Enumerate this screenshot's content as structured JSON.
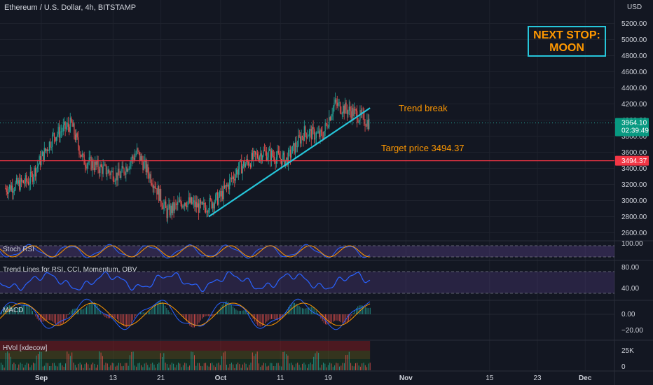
{
  "header": {
    "title": "Ethereum / U.S. Dollar, 4h, BITSTAMP",
    "currency": "USD"
  },
  "annotations": {
    "next_stop": "NEXT STOP:",
    "moon": "MOON",
    "trend_break": "Trend break",
    "target_label": "Target price 3494.37"
  },
  "price_badges": {
    "last": "3964.10",
    "countdown": "02:39:49",
    "target": "3494.37"
  },
  "panes": {
    "stoch": "Stoch RSI",
    "trend": "Trend Lines for RSI, CCI, Momentum, OBV",
    "macd": "MACD",
    "hvol": "HVol [xdecow]"
  },
  "colors": {
    "bg": "#131722",
    "up": "#26a69a",
    "down": "#ef5350",
    "accent": "#26c6da",
    "target": "#f23645",
    "orange": "#ff9800",
    "rsi": "#2962ff"
  },
  "chart_data": [
    {
      "type": "candlestick",
      "title": "Ethereum / U.S. Dollar, 4h, BITSTAMP",
      "ylim": [
        2400,
        5300
      ],
      "y_ticks": [
        2600,
        2800,
        3000,
        3200,
        3400,
        3600,
        3800,
        4000,
        4200,
        4400,
        4600,
        4800,
        5000,
        5200
      ],
      "x_ticks": [
        "Sep",
        "13",
        "21",
        "Oct",
        "11",
        "19",
        "Nov",
        "15",
        "23",
        "Dec"
      ],
      "approx_close_path": [
        {
          "x": "Aug 26",
          "y": 3150
        },
        {
          "x": "Aug 30",
          "y": 3250
        },
        {
          "x": "Sep 3",
          "y": 3800
        },
        {
          "x": "Sep 6",
          "y": 3950
        },
        {
          "x": "Sep 8",
          "y": 3500
        },
        {
          "x": "Sep 11",
          "y": 3400
        },
        {
          "x": "Sep 14",
          "y": 3300
        },
        {
          "x": "Sep 17",
          "y": 3600
        },
        {
          "x": "Sep 20",
          "y": 3200
        },
        {
          "x": "Sep 22",
          "y": 2850
        },
        {
          "x": "Sep 25",
          "y": 3000
        },
        {
          "x": "Sep 28",
          "y": 2900
        },
        {
          "x": "Oct 1",
          "y": 3050
        },
        {
          "x": "Oct 4",
          "y": 3400
        },
        {
          "x": "Oct 8",
          "y": 3600
        },
        {
          "x": "Oct 12",
          "y": 3500
        },
        {
          "x": "Oct 15",
          "y": 3850
        },
        {
          "x": "Oct 18",
          "y": 3800
        },
        {
          "x": "Oct 20",
          "y": 4200
        },
        {
          "x": "Oct 23",
          "y": 4100
        },
        {
          "x": "Oct 26",
          "y": 3960
        }
      ],
      "last_price": 3964.1,
      "target_price": 3494.37,
      "trend_line": {
        "from": {
          "x": "Sep 29",
          "y": 2800
        },
        "to": {
          "x": "Oct 26",
          "y": 4150
        }
      }
    },
    {
      "type": "line",
      "name": "Stoch RSI",
      "y_ticks": [
        100
      ]
    },
    {
      "type": "line",
      "name": "RSI",
      "y_ticks": [
        80,
        40
      ]
    },
    {
      "type": "bar",
      "name": "MACD",
      "y_ticks": [
        0,
        -20
      ]
    },
    {
      "type": "bar",
      "name": "HVol",
      "y_ticks": [
        "25K",
        "0"
      ]
    }
  ]
}
